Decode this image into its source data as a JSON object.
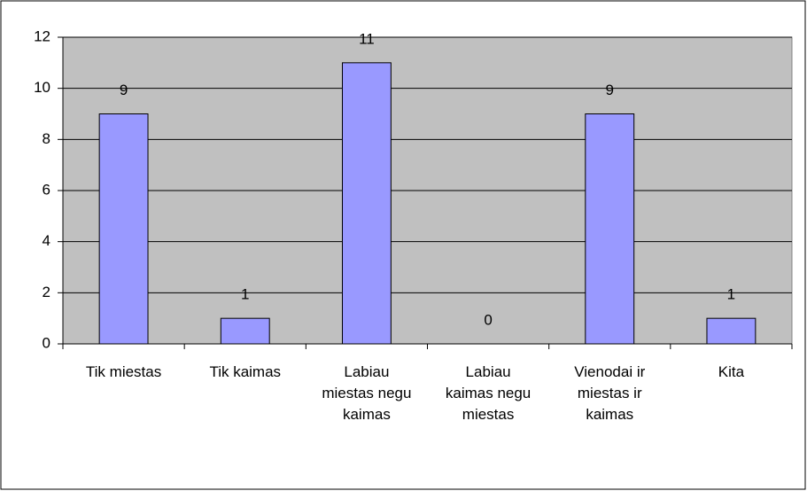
{
  "chart_data": {
    "type": "bar",
    "categories": [
      "Tik miestas",
      "Tik kaimas",
      "Labiau miestas negu kaimas",
      "Labiau kaimas negu miestas",
      "Vienodai ir miestas ir kaimas",
      "Kita"
    ],
    "values": [
      9,
      1,
      11,
      0,
      9,
      1
    ],
    "color": "#9999ff",
    "ylim": [
      0,
      12
    ],
    "yticks": [
      0,
      2,
      4,
      6,
      8,
      10,
      12
    ],
    "grid": true
  }
}
